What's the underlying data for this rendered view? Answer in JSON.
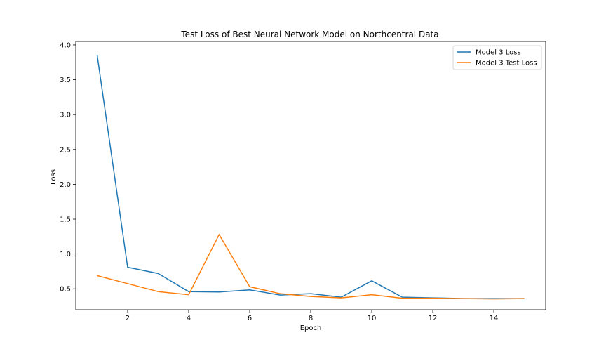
{
  "chart_data": {
    "type": "line",
    "title": "Test Loss of Best Neural Network Model on Northcentral Data",
    "xlabel": "Epoch",
    "ylabel": "Loss",
    "xlim": [
      0.3,
      15.7
    ],
    "ylim": [
      0.2,
      4.05
    ],
    "xticks": [
      2,
      4,
      6,
      8,
      10,
      12,
      14
    ],
    "yticks": [
      0.5,
      1.0,
      1.5,
      2.0,
      2.5,
      3.0,
      3.5,
      4.0
    ],
    "xtick_labels": [
      "2",
      "4",
      "6",
      "8",
      "10",
      "12",
      "14"
    ],
    "ytick_labels": [
      "0.5",
      "1.0",
      "1.5",
      "2.0",
      "2.5",
      "3.0",
      "3.5",
      "4.0"
    ],
    "grid": false,
    "legend": "top-right",
    "x": [
      1,
      2,
      3,
      4,
      5,
      6,
      7,
      8,
      9,
      10,
      11,
      12,
      13,
      14,
      15
    ],
    "series": [
      {
        "name": "Model 3 Loss",
        "color": "#1f77b4",
        "values": [
          3.86,
          0.81,
          0.72,
          0.46,
          0.455,
          0.485,
          0.41,
          0.43,
          0.38,
          0.615,
          0.38,
          0.37,
          0.36,
          0.36,
          0.36
        ]
      },
      {
        "name": "Model 3 Test Loss",
        "color": "#ff7f0e",
        "values": [
          0.69,
          0.575,
          0.46,
          0.415,
          1.28,
          0.53,
          0.43,
          0.39,
          0.37,
          0.415,
          0.365,
          0.365,
          0.36,
          0.355,
          0.36
        ]
      }
    ]
  }
}
